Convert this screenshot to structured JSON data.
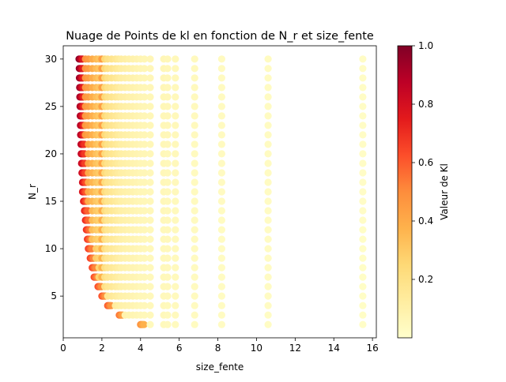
{
  "chart_data": {
    "type": "scatter",
    "title": "Nuage de Points de kl en fonction de N_r et size_fente",
    "xlabel": "size_fente",
    "ylabel": "N_r",
    "xlim": [
      0,
      16.2
    ],
    "ylim": [
      0.6,
      31.4
    ],
    "xticks": [
      0,
      2,
      4,
      6,
      8,
      10,
      12,
      14,
      16
    ],
    "yticks": [
      5,
      10,
      15,
      20,
      25,
      30
    ],
    "grid": false,
    "colormap": "YlOrRd",
    "colorbar": {
      "label": "Valeur de Kl",
      "range": [
        0,
        1.0
      ],
      "ticks": [
        0.2,
        0.4,
        0.6,
        0.8,
        1.0
      ],
      "tick_labels": [
        "0.2",
        "0.4",
        "0.6",
        "0.8",
        "1.0"
      ]
    },
    "nr_values": [
      2,
      3,
      4,
      5,
      6,
      7,
      8,
      9,
      10,
      11,
      12,
      13,
      14,
      15,
      16,
      17,
      18,
      19,
      20,
      21,
      22,
      23,
      24,
      25,
      26,
      27,
      28,
      29,
      30
    ],
    "row_start_x": [
      4.0,
      2.9,
      2.3,
      2.0,
      1.8,
      1.6,
      1.5,
      1.4,
      1.3,
      1.25,
      1.2,
      1.15,
      1.1,
      1.05,
      1.0,
      1.0,
      0.97,
      0.95,
      0.93,
      0.92,
      0.9,
      0.89,
      0.88,
      0.87,
      0.86,
      0.85,
      0.84,
      0.83,
      0.82
    ],
    "row_end_kl": [
      0.48,
      0.55,
      0.6,
      0.62,
      0.63,
      0.64,
      0.65,
      0.66,
      0.67,
      0.68,
      0.7,
      0.72,
      0.74,
      0.76,
      0.78,
      0.8,
      0.82,
      0.84,
      0.86,
      0.88,
      0.89,
      0.9,
      0.91,
      0.92,
      0.93,
      0.94,
      0.95,
      0.96,
      0.98
    ],
    "x_columns": [
      1.0,
      1.15,
      1.3,
      1.5,
      1.7,
      1.85,
      2.0,
      2.15,
      2.3,
      2.5,
      2.7,
      2.85,
      3.0,
      3.2,
      3.4,
      3.6,
      3.8,
      4.0,
      4.2,
      4.5,
      5.2,
      5.4,
      5.8,
      6.8,
      8.2,
      10.6,
      15.5
    ],
    "x_columns_kl": [
      0.52,
      0.48,
      0.45,
      0.4,
      0.35,
      0.32,
      0.45,
      0.25,
      0.2,
      0.18,
      0.16,
      0.14,
      0.12,
      0.11,
      0.1,
      0.09,
      0.08,
      0.07,
      0.065,
      0.06,
      0.06,
      0.055,
      0.05,
      0.04,
      0.035,
      0.03,
      0.02
    ]
  }
}
